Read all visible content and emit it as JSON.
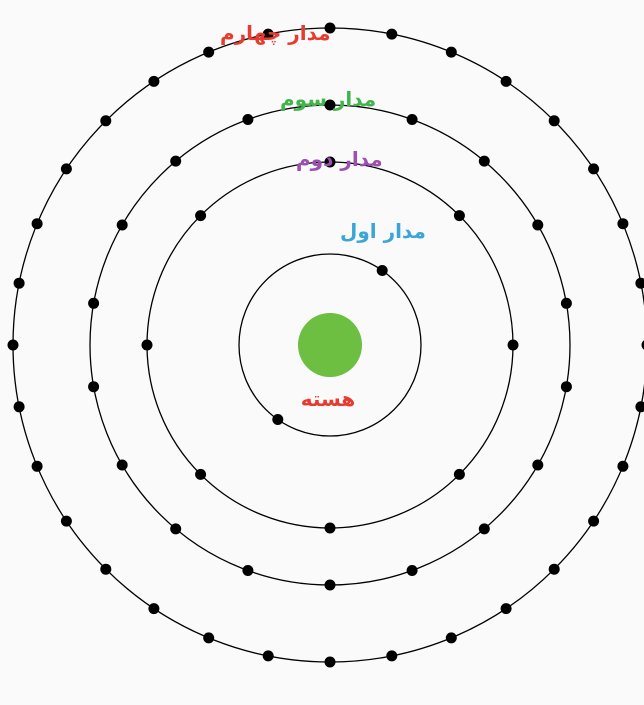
{
  "diagram": {
    "nucleus_label": "هسته",
    "nucleus_color": "#6cbf40",
    "orbits": [
      {
        "label": "مدار اول",
        "label_color": "#39a5d8",
        "electrons": 2
      },
      {
        "label": "مدار دوم",
        "label_color": "#9b4fb0",
        "electrons": 8
      },
      {
        "label": "مدار سوم",
        "label_color": "#42b54a",
        "electrons": 18
      },
      {
        "label": "مدار چهارم",
        "label_color": "#e83b2f",
        "electrons": 32
      }
    ]
  }
}
